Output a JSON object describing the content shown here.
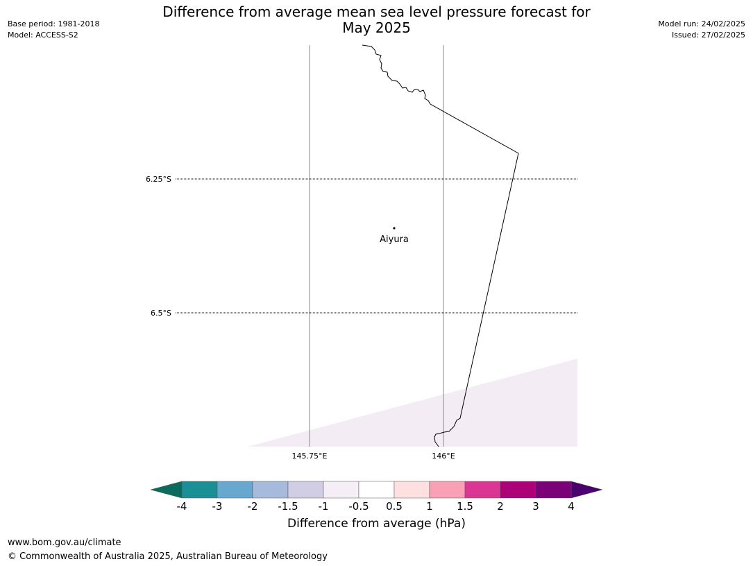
{
  "title": {
    "line1": "Difference from average mean sea level pressure forecast for",
    "line2": "May 2025"
  },
  "meta": {
    "base_period": "Base period: 1981-2018",
    "model": "Model: ACCESS-S2",
    "model_run": "Model run: 24/02/2025",
    "issued": "Issued: 27/02/2025"
  },
  "map": {
    "lat_labels": [
      "6.25°S",
      "6.5°S"
    ],
    "lon_labels": [
      "145.75°E",
      "146°E"
    ],
    "place_label": "Aiyura",
    "shaded_region_color": "#f4ecf5",
    "coast_color": "#000000",
    "meridian_color": "#888888"
  },
  "colorbar": {
    "label": "Difference from average (hPa)",
    "ticks": [
      "-4",
      "-3",
      "-2",
      "-1.5",
      "-1",
      "-0.5",
      "0.5",
      "1",
      "1.5",
      "2",
      "3",
      "4"
    ],
    "colors": [
      "#1a9096",
      "#66a8d0",
      "#a6badb",
      "#d1cde5",
      "#f5eef7",
      "#ffffff",
      "#fde0df",
      "#f99fb6",
      "#dc3695",
      "#ad0179",
      "#7a0177"
    ],
    "extend_low_color": "#0b6b5e",
    "extend_high_color": "#4b0070"
  },
  "footer": {
    "url": "www.bom.gov.au/climate",
    "copyright": "© Commonwealth of Australia 2025, Australian Bureau of Meteorology"
  }
}
